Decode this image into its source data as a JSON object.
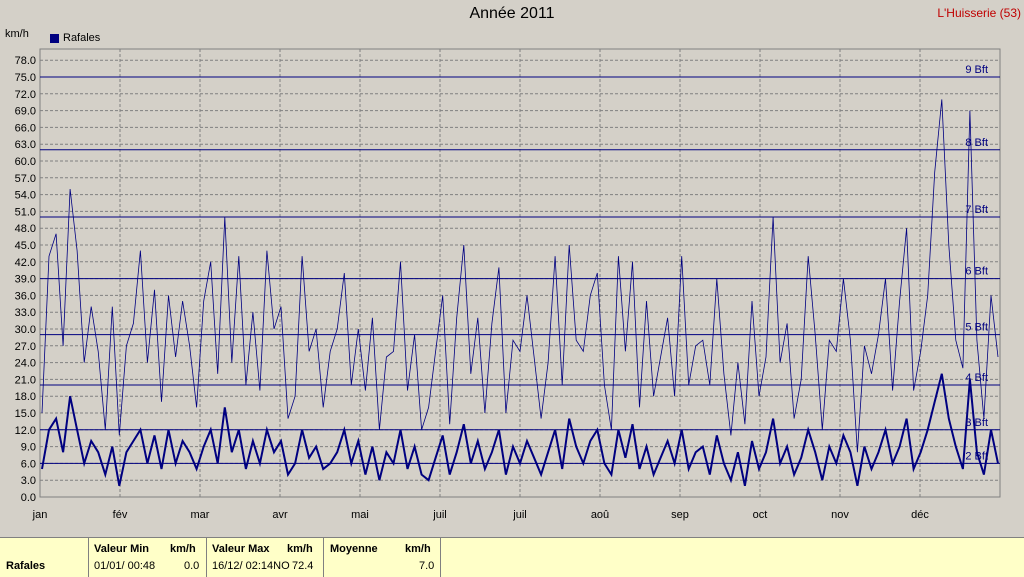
{
  "title": "Année 2011",
  "station": "L'Huisserie (53)",
  "unit": "km/h",
  "legend": "Rafales",
  "colors": {
    "series": "#000080",
    "thin": "#000080",
    "background": "#d4d0c8",
    "summary_bg": "#ffffc8",
    "station": "#c00000"
  },
  "chart_data": {
    "type": "line",
    "title": "Année 2011",
    "ylabel": "km/h",
    "ylim": [
      0,
      80
    ],
    "yticks": [
      "0.0",
      "3.0",
      "6.0",
      "9.0",
      "12.0",
      "15.0",
      "18.0",
      "21.0",
      "24.0",
      "27.0",
      "30.0",
      "33.0",
      "36.0",
      "39.0",
      "42.0",
      "45.0",
      "48.0",
      "51.0",
      "54.0",
      "57.0",
      "60.0",
      "63.0",
      "66.0",
      "69.0",
      "72.0",
      "75.0",
      "78.0"
    ],
    "months": [
      "jan",
      "fév",
      "mar",
      "avr",
      "mai",
      "juil",
      "juil",
      "aoû",
      "sep",
      "oct",
      "nov",
      "déc"
    ],
    "beaufort": [
      {
        "label": "2 Bft",
        "value": 6
      },
      {
        "label": "3 Bft",
        "value": 12
      },
      {
        "label": "4 Bft",
        "value": 20
      },
      {
        "label": "5 Bft",
        "value": 29
      },
      {
        "label": "6 Bft",
        "value": 39
      },
      {
        "label": "7 Bft",
        "value": 50
      },
      {
        "label": "8 Bft",
        "value": 62
      },
      {
        "label": "9 Bft",
        "value": 75
      }
    ],
    "series": [
      {
        "name": "Rafales",
        "values": [
          5,
          12,
          14,
          8,
          18,
          12,
          6,
          10,
          8,
          4,
          9,
          2,
          8,
          10,
          12,
          6,
          11,
          5,
          12,
          6,
          10,
          8,
          5,
          9,
          12,
          6,
          16,
          8,
          12,
          5,
          10,
          6,
          12,
          8,
          10,
          4,
          6,
          12,
          7,
          9,
          5,
          6,
          8,
          12,
          6,
          10,
          4,
          9,
          3,
          8,
          6,
          12,
          5,
          9,
          4,
          3,
          7,
          11,
          4,
          8,
          13,
          6,
          10,
          5,
          8,
          12,
          4,
          9,
          6,
          10,
          7,
          4,
          8,
          12,
          5,
          14,
          9,
          6,
          10,
          12,
          6,
          4,
          12,
          7,
          13,
          5,
          9,
          4,
          7,
          10,
          6,
          12,
          5,
          8,
          9,
          4,
          11,
          6,
          3,
          8,
          2,
          10,
          5,
          8,
          14,
          6,
          9,
          4,
          7,
          12,
          8,
          3,
          9,
          6,
          11,
          8,
          2,
          9,
          5,
          8,
          12,
          6,
          9,
          14,
          5,
          8,
          12,
          17,
          22,
          14,
          9,
          5,
          21,
          8,
          4,
          12,
          6
        ]
      }
    ]
  },
  "summary": {
    "row_label": "Rafales",
    "min_header": "Valeur Min",
    "min_unit": "km/h",
    "min_date": "01/01/  00:48",
    "min_value": "0.0",
    "max_header": "Valeur Max",
    "max_unit": "km/h",
    "max_date": "16/12/  02:14NO",
    "max_value": "72.4",
    "avg_header": "Moyenne",
    "avg_unit": "km/h",
    "avg_value": "7.0"
  }
}
